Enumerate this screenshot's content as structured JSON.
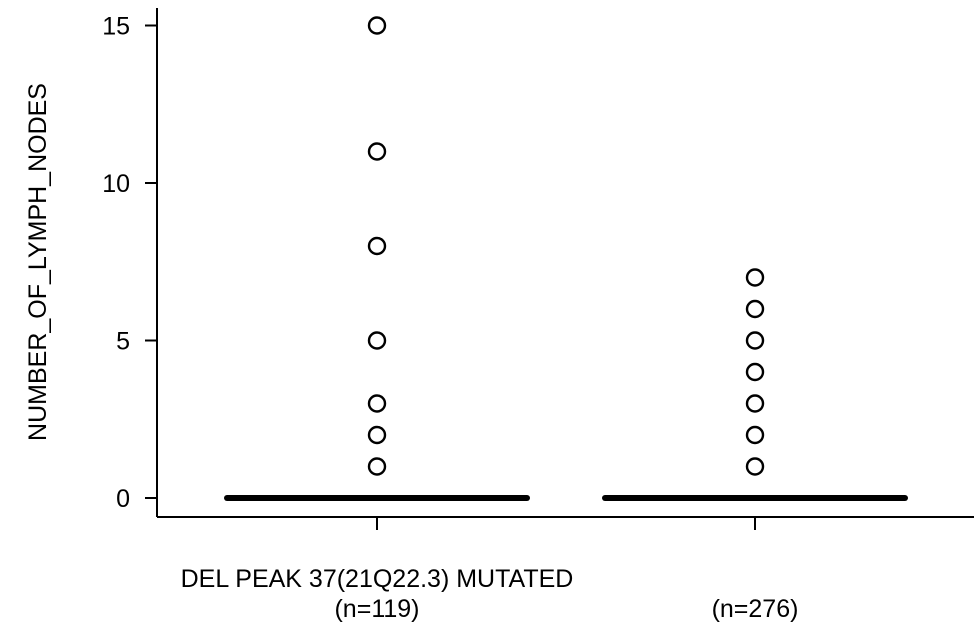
{
  "chart_data": {
    "type": "box",
    "title": "",
    "xlabel": "",
    "ylabel": "NUMBER_OF_LYMPH_NODES",
    "ylim": [
      -0.6,
      15.6
    ],
    "yticks": [
      0,
      5,
      10,
      15
    ],
    "ytick_labels": [
      "0",
      "5",
      "10",
      "15"
    ],
    "grid": false,
    "categories": [
      {
        "label": "DEL PEAK 37(21Q22.3) MUTATED",
        "n_label": "(n=119)"
      },
      {
        "label": "",
        "n_label": "(n=276)"
      }
    ],
    "groups": [
      {
        "median": 0,
        "q1": 0,
        "q3": 0,
        "whisker_low": 0,
        "whisker_high": 0,
        "outliers": [
          1,
          2,
          3,
          5,
          8,
          11,
          15
        ]
      },
      {
        "median": 0,
        "q1": 0,
        "q3": 0,
        "whisker_low": 0,
        "whisker_high": 0,
        "outliers": [
          1,
          2,
          3,
          4,
          5,
          6,
          7
        ]
      }
    ],
    "colors": {
      "axis": "#000000",
      "marker": "#000000",
      "median": "#000000"
    }
  }
}
